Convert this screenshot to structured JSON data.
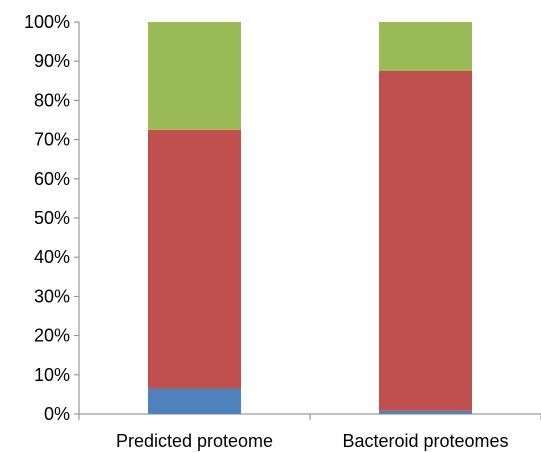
{
  "chart_data": {
    "type": "bar",
    "stacked": true,
    "percent": true,
    "categories": [
      "Predicted proteome",
      "Bacteroid proteomes"
    ],
    "series": [
      {
        "color": "#4f81bd",
        "values": [
          6.5,
          0.8
        ]
      },
      {
        "color": "#c0504d",
        "values": [
          66.0,
          86.7
        ]
      },
      {
        "color": "#9bbb59",
        "values": [
          27.5,
          12.5
        ]
      }
    ],
    "y_ticks": [
      "0%",
      "10%",
      "20%",
      "30%",
      "40%",
      "50%",
      "60%",
      "70%",
      "80%",
      "90%",
      "100%"
    ],
    "ylim": [
      0,
      100
    ],
    "grid": false,
    "legend": "none"
  }
}
